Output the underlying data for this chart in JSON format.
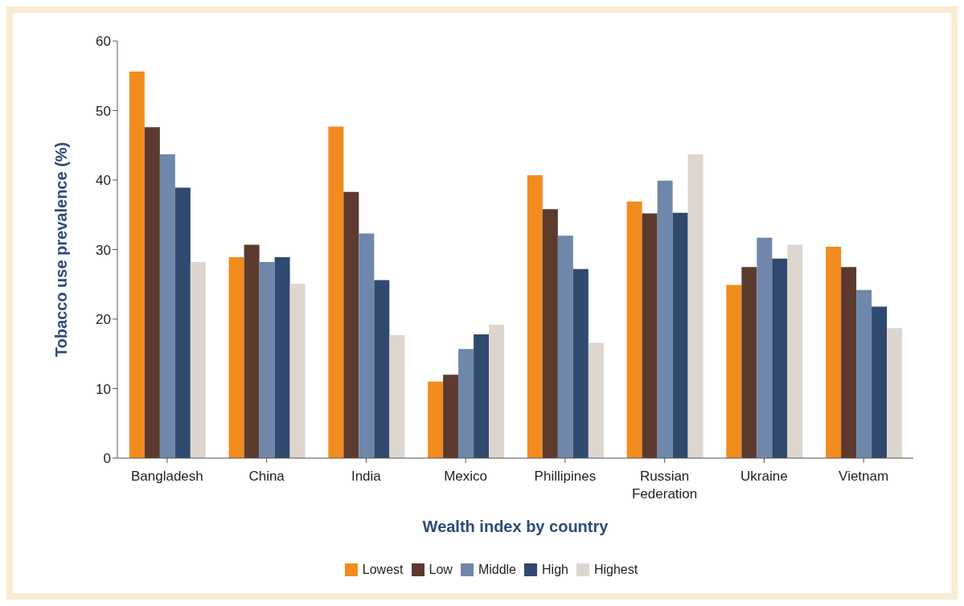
{
  "chart_data": {
    "type": "bar",
    "xlabel": "Wealth index by country",
    "ylabel": "Tobacco use prevalence (%)",
    "categories": [
      "Bangladesh",
      "China",
      "India",
      "Mexico",
      "Phillipines",
      "Russian Federation",
      "Ukraine",
      "Vietnam"
    ],
    "series": [
      {
        "name": "Lowest",
        "color": "#f28c1e",
        "values": [
          55.6,
          28.9,
          47.7,
          11.0,
          40.7,
          36.9,
          24.9,
          30.4
        ]
      },
      {
        "name": "Low",
        "color": "#5c3a2e",
        "values": [
          47.6,
          30.7,
          38.3,
          12.0,
          35.8,
          35.2,
          27.5,
          27.5
        ]
      },
      {
        "name": "Middle",
        "color": "#6f87aa",
        "values": [
          43.7,
          28.2,
          32.3,
          15.7,
          32.0,
          39.9,
          31.7,
          24.2
        ]
      },
      {
        "name": "High",
        "color": "#2f4a6e",
        "values": [
          38.9,
          28.9,
          25.6,
          17.8,
          27.2,
          35.3,
          28.7,
          21.8
        ]
      },
      {
        "name": "Highest",
        "color": "#ddd6cf",
        "values": [
          28.2,
          25.1,
          17.7,
          19.2,
          16.6,
          43.7,
          30.7,
          18.7
        ]
      }
    ],
    "ylim": [
      0,
      60
    ],
    "yticks": [
      0,
      10,
      20,
      30,
      40,
      50,
      60
    ],
    "grid": false,
    "legend": "bottom"
  }
}
